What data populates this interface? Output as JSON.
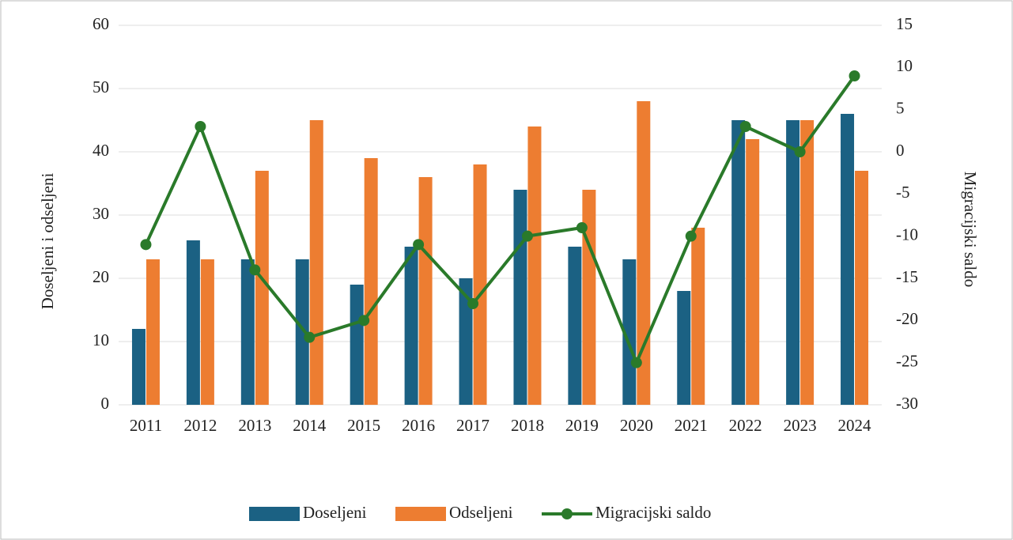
{
  "chart_data": {
    "type": "bar-line",
    "categories": [
      "2011",
      "2012",
      "2013",
      "2014",
      "2015",
      "2016",
      "2017",
      "2018",
      "2019",
      "2020",
      "2021",
      "2022",
      "2023",
      "2024"
    ],
    "y_label": "Doseljeni i odseljeni",
    "y2_label": "Migracijski saldo",
    "series": [
      {
        "name": "Doseljeni",
        "type": "bar",
        "color": "#1b6183",
        "values": [
          12,
          26,
          23,
          23,
          19,
          25,
          20,
          34,
          25,
          23,
          18,
          45,
          45,
          46
        ]
      },
      {
        "name": "Odseljeni",
        "type": "bar",
        "color": "#ed7d31",
        "values": [
          23,
          23,
          37,
          45,
          39,
          36,
          38,
          44,
          34,
          48,
          28,
          42,
          45,
          37
        ]
      },
      {
        "name": "Migracijski saldo",
        "type": "line",
        "axis": "y2",
        "color": "#2a7a2a",
        "values": [
          -11,
          3,
          -14,
          -22,
          -20,
          -11,
          -18,
          -10,
          -9,
          -25,
          -10,
          3,
          0,
          9
        ]
      }
    ],
    "ylim": [
      0,
      60
    ],
    "yticks": [
      0,
      10,
      20,
      30,
      40,
      50,
      60
    ],
    "y2lim": [
      -30,
      15
    ],
    "y2ticks": [
      -30,
      -25,
      -20,
      -15,
      -10,
      -5,
      0,
      5,
      10,
      15
    ],
    "grid": true,
    "legend": "bottom"
  }
}
